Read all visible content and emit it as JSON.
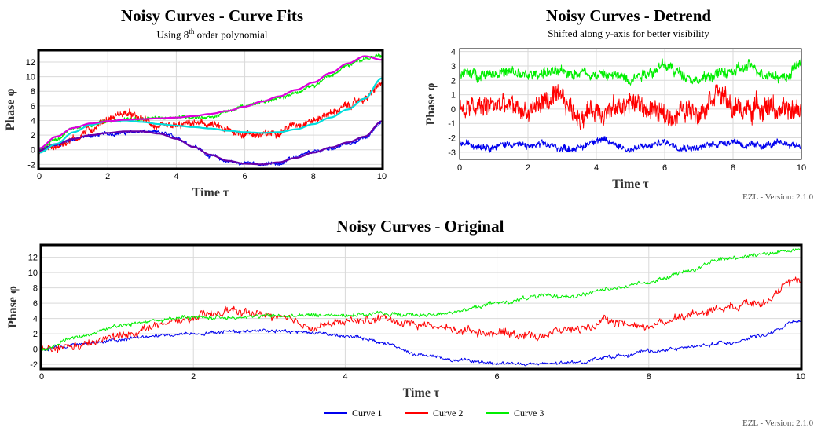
{
  "chart_data": [
    {
      "id": "fits",
      "type": "line",
      "title": "Noisy Curves - Curve Fits",
      "subtitle_pre": "Using 8",
      "subtitle_sup": "th",
      "subtitle_post": " order polynomial",
      "xlabel": "Time τ",
      "ylabel": "Phase φ",
      "xlim": [
        0,
        10
      ],
      "ylim": [
        -2.5,
        13.5
      ],
      "xticks": [
        0,
        2,
        4,
        6,
        8,
        10
      ],
      "yticks": [
        -2,
        0,
        2,
        4,
        6,
        8,
        10,
        12
      ],
      "grid": true,
      "series": [
        {
          "color": "#0000ee",
          "noise": 0.35,
          "x": [
            0,
            0.5,
            1,
            1.5,
            2,
            2.5,
            3,
            3.5,
            4,
            4.5,
            5,
            5.5,
            6,
            6.5,
            7,
            7.5,
            8,
            8.5,
            9,
            9.5,
            10
          ],
          "y": [
            0,
            0.6,
            1.4,
            1.9,
            2.2,
            2.3,
            2.5,
            2.3,
            1.7,
            0.5,
            -0.8,
            -1.6,
            -1.8,
            -2.0,
            -1.8,
            -1.0,
            -0.3,
            0.2,
            0.8,
            1.6,
            3.8
          ]
        },
        {
          "color": "#ff0000",
          "noise": 0.7,
          "x": [
            0,
            0.5,
            1,
            1.5,
            2,
            2.5,
            3,
            3.5,
            4,
            4.5,
            5,
            5.5,
            6,
            6.5,
            7,
            7.5,
            8,
            8.5,
            9,
            9.5,
            10
          ],
          "y": [
            -0.2,
            0.5,
            1.5,
            2.8,
            4.2,
            5.0,
            4.2,
            3.0,
            3.2,
            3.6,
            3.4,
            2.6,
            2.2,
            2.0,
            2.5,
            3.5,
            4.0,
            5.0,
            6.0,
            7.0,
            9.0
          ]
        },
        {
          "color": "#00ee00",
          "noise": 0.35,
          "x": [
            0,
            0.5,
            1,
            1.5,
            2,
            2.5,
            3,
            3.5,
            4,
            4.5,
            5,
            5.5,
            6,
            6.5,
            7,
            7.5,
            8,
            8.5,
            9,
            9.5,
            10
          ],
          "y": [
            0,
            1.5,
            3.0,
            3.5,
            3.8,
            4.2,
            4.2,
            4.3,
            4.5,
            4.5,
            4.4,
            5.2,
            6.0,
            6.6,
            7.0,
            7.8,
            8.8,
            10.2,
            11.5,
            12.5,
            12.8
          ]
        },
        {
          "color": "#6600aa",
          "noise": 0,
          "width": 2.2,
          "x": [
            0,
            0.5,
            1,
            1.5,
            2,
            2.5,
            3,
            3.5,
            4,
            4.5,
            5,
            5.5,
            6,
            6.5,
            7,
            7.5,
            8,
            8.5,
            9,
            9.5,
            10
          ],
          "y": [
            -0.1,
            0.8,
            1.5,
            2.0,
            2.3,
            2.5,
            2.5,
            2.2,
            1.5,
            0.4,
            -0.7,
            -1.5,
            -1.9,
            -2.0,
            -1.7,
            -1.1,
            -0.4,
            0.3,
            1.0,
            1.8,
            3.9
          ]
        },
        {
          "color": "#00dddd",
          "noise": 0,
          "width": 2.2,
          "x": [
            0,
            0.5,
            1,
            1.5,
            2,
            2.5,
            3,
            3.5,
            4,
            4.5,
            5,
            5.5,
            6,
            6.5,
            7,
            7.5,
            8,
            8.5,
            9,
            9.5,
            10
          ],
          "y": [
            -0.4,
            0.8,
            2.4,
            3.4,
            3.9,
            4.0,
            3.8,
            3.5,
            3.3,
            3.1,
            2.9,
            2.6,
            2.4,
            2.3,
            2.4,
            2.8,
            3.5,
            4.4,
            5.5,
            7.0,
            9.8
          ]
        },
        {
          "color": "#dd00dd",
          "noise": 0,
          "width": 2.2,
          "x": [
            0,
            0.5,
            1,
            1.5,
            2,
            2.5,
            3,
            3.5,
            4,
            4.5,
            5,
            5.5,
            6,
            6.5,
            7,
            7.5,
            8,
            8.5,
            9,
            9.5,
            10
          ],
          "y": [
            0.2,
            1.8,
            3.0,
            3.6,
            3.9,
            4.1,
            4.2,
            4.3,
            4.4,
            4.6,
            4.9,
            5.3,
            5.9,
            6.6,
            7.3,
            8.2,
            9.2,
            10.5,
            11.8,
            12.8,
            12.3
          ]
        }
      ]
    },
    {
      "id": "detrend",
      "type": "line",
      "title": "Noisy Curves - Detrend",
      "subtitle": "Shifted along y-axis for better visibility",
      "xlabel": "Time τ",
      "ylabel": "Phase φ",
      "xlim": [
        0,
        10
      ],
      "ylim": [
        -3.5,
        4.2
      ],
      "xticks": [
        0,
        2,
        4,
        6,
        8,
        10
      ],
      "yticks": [
        -3,
        -2,
        -1,
        0,
        1,
        2,
        3,
        4
      ],
      "grid": true,
      "footer": "EZL - Version: 2.1.0",
      "series": [
        {
          "color": "#0000ee",
          "noise": 0.35,
          "x": [
            0,
            0.5,
            1,
            1.5,
            2,
            2.5,
            3,
            3.5,
            4,
            4.5,
            5,
            5.5,
            6,
            6.5,
            7,
            7.5,
            8,
            8.5,
            9,
            9.5,
            10
          ],
          "y": [
            -2.4,
            -2.5,
            -2.6,
            -2.4,
            -2.6,
            -2.5,
            -2.7,
            -2.7,
            -2.1,
            -2.4,
            -2.8,
            -2.6,
            -2.3,
            -2.6,
            -2.7,
            -2.4,
            -2.2,
            -2.6,
            -2.5,
            -2.4,
            -2.5
          ]
        },
        {
          "color": "#ff0000",
          "noise": 1.1,
          "x": [
            0,
            0.5,
            1,
            1.5,
            2,
            2.5,
            3,
            3.5,
            4,
            4.5,
            5,
            5.5,
            6,
            6.5,
            7,
            7.5,
            8,
            8.5,
            9,
            9.5,
            10
          ],
          "y": [
            0.0,
            0.0,
            0.3,
            0.1,
            -0.2,
            0.6,
            0.5,
            -0.4,
            0.0,
            -0.1,
            0.5,
            0.0,
            -0.5,
            -0.2,
            0.0,
            1.3,
            0.0,
            0.0,
            0.3,
            -0.3,
            0.0
          ]
        },
        {
          "color": "#00ee00",
          "noise": 0.55,
          "x": [
            0,
            0.5,
            1,
            1.5,
            2,
            2.5,
            3,
            3.5,
            4,
            4.5,
            5,
            5.5,
            6,
            6.5,
            7,
            7.5,
            8,
            8.5,
            9,
            9.5,
            10
          ],
          "y": [
            2.5,
            2.4,
            2.6,
            2.5,
            2.3,
            2.6,
            2.5,
            2.6,
            2.4,
            2.3,
            2.2,
            2.6,
            3.0,
            2.5,
            2.0,
            2.4,
            2.6,
            2.9,
            2.5,
            2.2,
            3.2
          ]
        }
      ]
    },
    {
      "id": "original",
      "type": "line",
      "title": "Noisy Curves - Original",
      "xlabel": "Time τ",
      "ylabel": "Phase φ",
      "xlim": [
        0,
        10
      ],
      "ylim": [
        -2.5,
        13.5
      ],
      "xticks": [
        0,
        2,
        4,
        6,
        8,
        10
      ],
      "yticks": [
        -2,
        0,
        2,
        4,
        6,
        8,
        10,
        12
      ],
      "grid": true,
      "footer": "EZL - Version: 2.1.0",
      "legend_position": "bottom-center",
      "legend": [
        "Curve 1",
        "Curve 2",
        "Curve 3"
      ],
      "series": [
        {
          "name": "Curve 1",
          "color": "#0000ee",
          "noise": 0.35,
          "x": [
            0,
            0.5,
            1,
            1.5,
            2,
            2.5,
            3,
            3.5,
            4,
            4.5,
            5,
            5.5,
            6,
            6.5,
            7,
            7.5,
            8,
            8.5,
            9,
            9.5,
            10
          ],
          "y": [
            0,
            0.6,
            1.2,
            1.7,
            2.1,
            2.3,
            2.5,
            2.2,
            1.8,
            0.8,
            -0.8,
            -1.5,
            -1.8,
            -2.0,
            -1.8,
            -1.0,
            -0.3,
            0.2,
            0.8,
            1.8,
            3.7
          ]
        },
        {
          "name": "Curve 2",
          "color": "#ff0000",
          "noise": 0.8,
          "x": [
            0,
            0.5,
            1,
            1.5,
            2,
            2.5,
            3,
            3.5,
            4,
            4.5,
            5,
            5.5,
            6,
            6.5,
            7,
            7.5,
            8,
            8.5,
            9,
            9.5,
            10
          ],
          "y": [
            -0.2,
            0.4,
            1.6,
            3.0,
            4.0,
            5.0,
            4.4,
            3.0,
            3.5,
            4.0,
            3.2,
            2.5,
            2.2,
            1.8,
            2.6,
            3.5,
            3.0,
            4.5,
            5.5,
            6.5,
            9.0
          ]
        },
        {
          "name": "Curve 3",
          "color": "#00ee00",
          "noise": 0.4,
          "x": [
            0,
            0.5,
            1,
            1.5,
            2,
            2.5,
            3,
            3.5,
            4,
            4.5,
            5,
            5.5,
            6,
            6.5,
            7,
            7.5,
            8,
            8.5,
            9,
            9.5,
            10
          ],
          "y": [
            0,
            1.7,
            3.0,
            3.8,
            4.1,
            4.2,
            4.3,
            4.4,
            4.5,
            4.6,
            4.4,
            5.0,
            6.0,
            6.8,
            7.0,
            7.8,
            8.8,
            10.2,
            11.8,
            12.5,
            13.0
          ]
        }
      ]
    }
  ]
}
